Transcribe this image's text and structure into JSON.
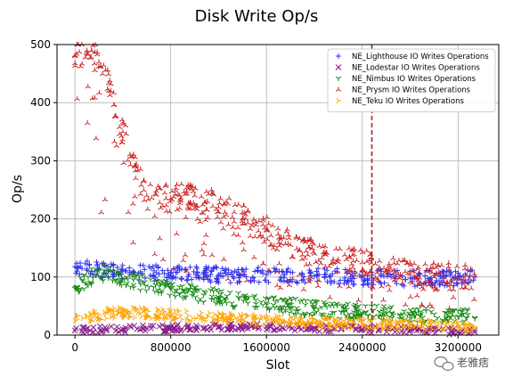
{
  "chart_data": {
    "type": "scatter",
    "title": "Disk Write Op/s",
    "xlabel": "Slot",
    "ylabel": "Op/s",
    "xlim": [
      -150000,
      3540000
    ],
    "ylim": [
      0,
      500
    ],
    "xticks": [
      0,
      800000,
      1600000,
      2400000,
      3200000
    ],
    "xtick_labels": [
      "0",
      "800000",
      "1600000",
      "2400000",
      "3200000"
    ],
    "yticks": [
      0,
      100,
      200,
      300,
      400,
      500
    ],
    "ytick_labels": [
      "0",
      "100",
      "200",
      "300",
      "400",
      "500"
    ],
    "grid": true,
    "legend_position": "top-right",
    "vline": {
      "x": 2480000,
      "color": "#b22222",
      "style": "dashed"
    },
    "series": [
      {
        "name": "NE_Lighthouse IO Writes Operations",
        "color": "#3232f0",
        "marker": "+",
        "x": [
          0,
          200000,
          400000,
          800000,
          1200000,
          1600000,
          2000000,
          2400000,
          2800000,
          3200000,
          3340000
        ],
        "y": [
          118,
          112,
          110,
          106,
          104,
          104,
          102,
          100,
          98,
          98,
          100
        ]
      },
      {
        "name": "NE_Lodestar IO Writes Operations",
        "color": "#8b1a8b",
        "marker": "x",
        "x": [
          0,
          400000,
          800000,
          1200000,
          1600000,
          2000000,
          2400000,
          2800000,
          3200000,
          3340000
        ],
        "y": [
          8,
          10,
          12,
          15,
          15,
          12,
          10,
          8,
          6,
          5
        ]
      },
      {
        "name": "NE_Nimbus IO Writes Operations",
        "color": "#118811",
        "marker": "1",
        "x": [
          0,
          200000,
          400000,
          800000,
          1200000,
          1600000,
          2000000,
          2400000,
          2800000,
          3200000,
          3340000
        ],
        "y": [
          80,
          110,
          95,
          80,
          65,
          55,
          45,
          38,
          35,
          32,
          30
        ]
      },
      {
        "name": "NE_Prysm IO Writes Operations",
        "color": "#cc2222",
        "marker": "2",
        "x": [
          0,
          100000,
          200000,
          300000,
          400000,
          500000,
          600000,
          800000,
          1000000,
          1200000,
          1400000,
          1600000,
          1800000,
          2000000,
          2200000,
          2400000,
          2600000,
          2800000,
          3000000,
          3200000,
          3340000
        ],
        "y": [
          480,
          490,
          470,
          420,
          350,
          290,
          240,
          235,
          240,
          220,
          200,
          180,
          155,
          140,
          130,
          125,
          110,
          105,
          100,
          100,
          102
        ]
      },
      {
        "name": "NE_Teku IO Writes Operations",
        "color": "#ffa500",
        "marker": "4",
        "x": [
          0,
          200000,
          400000,
          800000,
          1200000,
          1600000,
          2000000,
          2400000,
          2800000,
          3200000,
          3340000
        ],
        "y": [
          25,
          35,
          40,
          35,
          30,
          25,
          22,
          20,
          18,
          15,
          14
        ]
      }
    ]
  },
  "watermark": {
    "text": "老雅痞",
    "icon": "wechat-icon"
  }
}
